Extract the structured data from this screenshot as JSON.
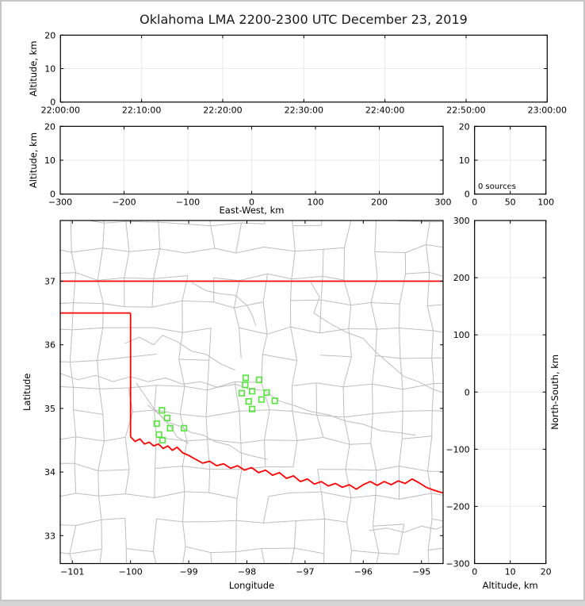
{
  "title": "Oklahoma LMA 2200-2300 UTC December 23, 2019",
  "colors": {
    "state_border": "#ff0000",
    "county_line": "#bdbdbd",
    "river_line": "#bdbdbd",
    "source_marker": "#53e63a",
    "gridline": "#e9e9e9",
    "spine": "#000000",
    "frame": "#c6c6c6",
    "background": "#ffffff"
  },
  "panels": {
    "time_height": {
      "ylabel": "Altitude, km",
      "x_ticks": [
        "22:00:00",
        "22:10:00",
        "22:20:00",
        "22:30:00",
        "22:40:00",
        "22:50:00",
        "23:00:00"
      ],
      "y_ticks": [
        "0",
        "10",
        "20"
      ]
    },
    "ew_height": {
      "ylabel": "Altitude, km",
      "xlabel": "East-West, km",
      "x_ticks": [
        "−300",
        "−200",
        "−100",
        "0",
        "100",
        "200",
        "300"
      ],
      "y_ticks": [
        "0",
        "10",
        "20"
      ]
    },
    "histogram": {
      "annotation": "0 sources",
      "x_ticks": [
        "0",
        "50",
        "100"
      ],
      "y_ticks": [
        "0",
        "10",
        "20"
      ]
    },
    "map": {
      "xlabel": "Longitude",
      "ylabel": "Latitude",
      "x_tick_values": [
        -101,
        -100,
        -99,
        -98,
        -97,
        -96,
        -95
      ],
      "x_ticks": [
        "−101",
        "−100",
        "−99",
        "−98",
        "−97",
        "−96",
        "−95"
      ],
      "y_tick_values": [
        33,
        34,
        35,
        36,
        37
      ],
      "y_ticks": [
        "33",
        "34",
        "35",
        "36",
        "37"
      ],
      "lon_range": [
        -101.208,
        -94.628
      ],
      "lat_range": [
        32.561,
        37.954
      ]
    },
    "ns_height": {
      "xlabel": "Altitude, km",
      "ylabel": "North-South, km",
      "x_ticks": [
        "0",
        "10",
        "20"
      ],
      "y_ticks": [
        "−300",
        "−200",
        "−100",
        "0",
        "100",
        "200",
        "300"
      ]
    }
  },
  "chart_data": {
    "type": "scatter",
    "title": "Oklahoma LMA 2200-2300 UTC December 23, 2019",
    "legend": "none",
    "grid": "on",
    "panels": [
      {
        "name": "altitude_vs_time",
        "x_ticks": [
          "22:00:00",
          "22:10:00",
          "22:20:00",
          "22:30:00",
          "22:40:00",
          "22:50:00",
          "23:00:00"
        ],
        "ylabel": "Altitude, km",
        "ylim": [
          0,
          20
        ],
        "points": []
      },
      {
        "name": "altitude_vs_east_west",
        "xlabel": "East-West, km",
        "ylabel": "Altitude, km",
        "xlim": [
          -300,
          300
        ],
        "ylim": [
          0,
          20
        ],
        "points": []
      },
      {
        "name": "altitude_histogram",
        "xlim": [
          0,
          100
        ],
        "ylim": [
          0,
          20
        ],
        "annotation": "0 sources",
        "points": []
      },
      {
        "name": "plan_view_map",
        "xlabel": "Longitude",
        "ylabel": "Latitude",
        "xlim": [
          -101.208,
          -94.628
        ],
        "ylim": [
          32.561,
          37.954
        ]
      },
      {
        "name": "north_south_vs_altitude",
        "xlabel": "Altitude, km",
        "ylabel": "North-South, km",
        "xlim": [
          0,
          20
        ],
        "ylim": [
          -300,
          300
        ],
        "points": []
      }
    ],
    "sources_lon_lat": [
      [
        -99.46,
        34.97
      ],
      [
        -99.37,
        34.85
      ],
      [
        -99.55,
        34.76
      ],
      [
        -99.32,
        34.69
      ],
      [
        -99.08,
        34.69
      ],
      [
        -99.51,
        34.59
      ],
      [
        -99.45,
        34.5
      ],
      [
        -98.02,
        35.48
      ],
      [
        -97.79,
        35.45
      ],
      [
        -98.03,
        35.37
      ],
      [
        -98.09,
        35.24
      ],
      [
        -97.91,
        35.27
      ],
      [
        -97.66,
        35.25
      ],
      [
        -97.97,
        35.11
      ],
      [
        -97.75,
        35.14
      ],
      [
        -97.52,
        35.12
      ],
      [
        -97.91,
        34.99
      ]
    ],
    "state_border": {
      "north_lat37": [
        [
          -101.208,
          37.0
        ],
        [
          -94.628,
          37.0
        ]
      ],
      "panhandle_south": [
        [
          -101.208,
          36.5
        ],
        [
          -100.0,
          36.5
        ]
      ],
      "meridian_100w": [
        [
          -100.0,
          36.5
        ],
        [
          -100.0,
          34.555
        ]
      ],
      "east_border": [
        [
          -94.618,
          37.0
        ],
        [
          -94.618,
          36.5
        ]
      ],
      "red_river": [
        [
          -100.0,
          34.555
        ],
        [
          -99.92,
          34.48
        ],
        [
          -99.84,
          34.52
        ],
        [
          -99.76,
          34.44
        ],
        [
          -99.68,
          34.47
        ],
        [
          -99.6,
          34.41
        ],
        [
          -99.52,
          34.44
        ],
        [
          -99.44,
          34.37
        ],
        [
          -99.36,
          34.41
        ],
        [
          -99.28,
          34.34
        ],
        [
          -99.2,
          34.39
        ],
        [
          -99.1,
          34.3
        ],
        [
          -99.0,
          34.26
        ],
        [
          -98.88,
          34.2
        ],
        [
          -98.76,
          34.14
        ],
        [
          -98.64,
          34.17
        ],
        [
          -98.52,
          34.1
        ],
        [
          -98.4,
          34.13
        ],
        [
          -98.28,
          34.06
        ],
        [
          -98.16,
          34.1
        ],
        [
          -98.04,
          34.03
        ],
        [
          -97.92,
          34.07
        ],
        [
          -97.8,
          33.99
        ],
        [
          -97.68,
          34.03
        ],
        [
          -97.56,
          33.95
        ],
        [
          -97.44,
          33.99
        ],
        [
          -97.32,
          33.9
        ],
        [
          -97.2,
          33.94
        ],
        [
          -97.08,
          33.85
        ],
        [
          -96.96,
          33.89
        ],
        [
          -96.84,
          33.81
        ],
        [
          -96.72,
          33.85
        ],
        [
          -96.6,
          33.78
        ],
        [
          -96.48,
          33.82
        ],
        [
          -96.36,
          33.76
        ],
        [
          -96.24,
          33.8
        ],
        [
          -96.12,
          33.73
        ],
        [
          -96.0,
          33.8
        ],
        [
          -95.88,
          33.85
        ],
        [
          -95.76,
          33.79
        ],
        [
          -95.64,
          33.85
        ],
        [
          -95.52,
          33.8
        ],
        [
          -95.4,
          33.86
        ],
        [
          -95.28,
          33.82
        ],
        [
          -95.16,
          33.89
        ],
        [
          -95.04,
          33.83
        ],
        [
          -94.92,
          33.76
        ],
        [
          -94.8,
          33.72
        ],
        [
          -94.7,
          33.69
        ],
        [
          -94.62,
          33.67
        ]
      ]
    },
    "rivers": [
      [
        [
          -98.95,
          36.98
        ],
        [
          -98.7,
          36.85
        ],
        [
          -98.45,
          36.8
        ],
        [
          -98.2,
          36.78
        ],
        [
          -98.0,
          36.62
        ],
        [
          -97.9,
          36.45
        ],
        [
          -97.85,
          36.3
        ]
      ],
      [
        [
          -100.1,
          36.02
        ],
        [
          -99.85,
          36.12
        ],
        [
          -99.6,
          36.0
        ],
        [
          -99.45,
          36.15
        ],
        [
          -99.2,
          36.05
        ],
        [
          -98.95,
          35.9
        ],
        [
          -98.7,
          35.85
        ],
        [
          -98.45,
          35.7
        ],
        [
          -98.2,
          35.6
        ]
      ],
      [
        [
          -101.21,
          35.55
        ],
        [
          -100.9,
          35.45
        ],
        [
          -100.6,
          35.52
        ],
        [
          -100.3,
          35.42
        ],
        [
          -100.0,
          35.5
        ],
        [
          -99.7,
          35.42
        ],
        [
          -99.4,
          35.48
        ],
        [
          -99.1,
          35.38
        ],
        [
          -98.8,
          35.42
        ],
        [
          -98.5,
          35.33
        ],
        [
          -98.2,
          35.38
        ],
        [
          -97.95,
          35.3
        ],
        [
          -97.7,
          35.28
        ],
        [
          -97.45,
          35.12
        ],
        [
          -97.2,
          35.05
        ],
        [
          -96.9,
          34.95
        ],
        [
          -96.6,
          34.9
        ],
        [
          -96.3,
          34.8
        ],
        [
          -96.0,
          34.75
        ],
        [
          -95.7,
          34.65
        ],
        [
          -95.4,
          34.62
        ],
        [
          -95.1,
          34.58
        ]
      ],
      [
        [
          -99.7,
          35.05
        ],
        [
          -99.5,
          34.9
        ],
        [
          -99.35,
          34.78
        ],
        [
          -99.15,
          34.72
        ],
        [
          -98.95,
          34.62
        ],
        [
          -98.75,
          34.58
        ],
        [
          -98.55,
          34.48
        ],
        [
          -98.3,
          34.42
        ],
        [
          -98.1,
          34.3
        ],
        [
          -97.9,
          34.25
        ],
        [
          -97.65,
          34.2
        ]
      ],
      [
        [
          -99.9,
          35.4
        ],
        [
          -99.75,
          35.2
        ],
        [
          -99.6,
          35.0
        ],
        [
          -99.45,
          34.85
        ],
        [
          -99.3,
          34.7
        ],
        [
          -99.2,
          34.55
        ],
        [
          -99.0,
          34.45
        ]
      ],
      [
        [
          -96.9,
          36.98
        ],
        [
          -96.75,
          36.75
        ],
        [
          -96.85,
          36.5
        ],
        [
          -96.6,
          36.35
        ],
        [
          -96.3,
          36.2
        ],
        [
          -96.0,
          36.1
        ],
        [
          -95.8,
          35.9
        ],
        [
          -95.55,
          35.7
        ],
        [
          -95.3,
          35.5
        ],
        [
          -95.05,
          35.42
        ],
        [
          -94.8,
          35.3
        ],
        [
          -94.63,
          35.25
        ]
      ],
      [
        [
          -95.9,
          33.08
        ],
        [
          -95.6,
          33.12
        ],
        [
          -95.3,
          33.05
        ],
        [
          -95.0,
          33.15
        ],
        [
          -94.75,
          33.1
        ],
        [
          -94.63,
          33.15
        ]
      ]
    ]
  }
}
